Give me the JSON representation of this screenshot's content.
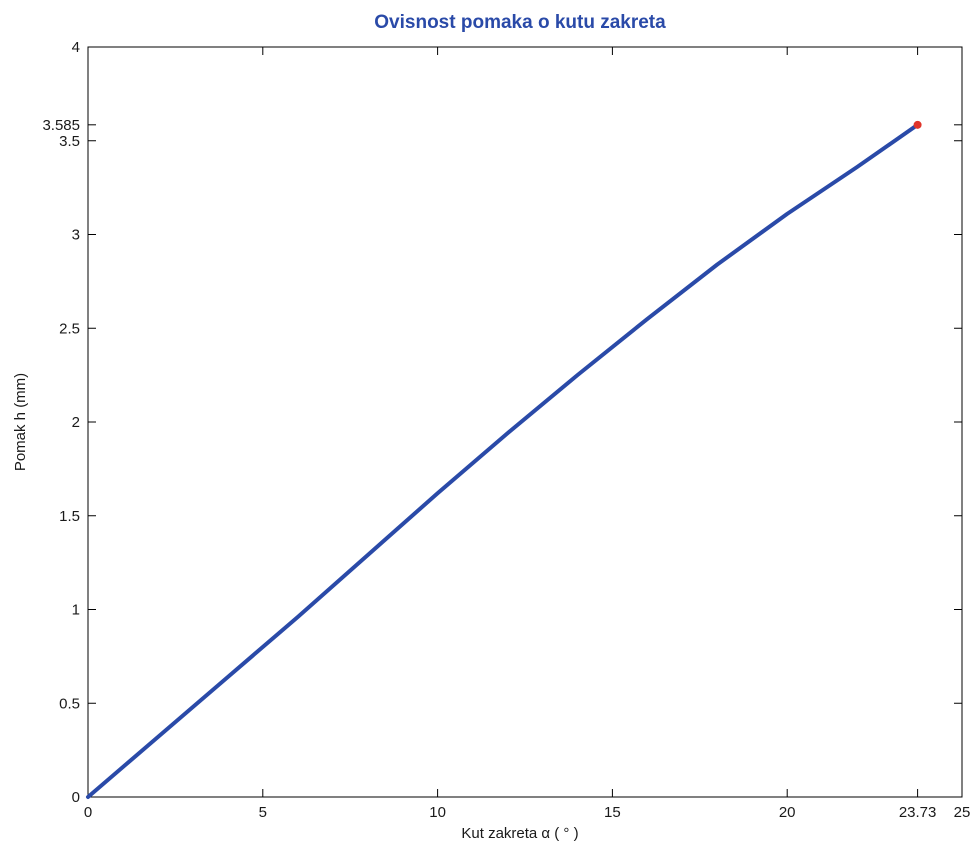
{
  "chart_data": {
    "type": "line",
    "title": "Ovisnost pomaka o kutu zakreta",
    "xlabel": "Kut zakreta α  ( ° )",
    "ylabel": "Pomak h (mm)",
    "xlim": [
      0,
      25
    ],
    "ylim": [
      0,
      4
    ],
    "x_ticks": [
      "0",
      "5",
      "10",
      "15",
      "20",
      "23.73",
      "25"
    ],
    "x_tick_values": [
      0,
      5,
      10,
      15,
      20,
      23.73,
      25
    ],
    "y_ticks": [
      "0",
      "0.5",
      "1",
      "1.5",
      "2",
      "2.5",
      "3",
      "3.5",
      "3.585",
      "4"
    ],
    "y_tick_values": [
      0,
      0.5,
      1,
      1.5,
      2,
      2.5,
      3,
      3.5,
      3.585,
      4
    ],
    "grid": false,
    "series": [
      {
        "color": "#2a4aa8",
        "x": [
          0,
          2,
          4,
          6,
          8,
          10,
          12,
          14,
          16,
          18,
          20,
          22,
          23.73
        ],
        "y": [
          0,
          0.32,
          0.64,
          0.96,
          1.29,
          1.62,
          1.94,
          2.25,
          2.55,
          2.84,
          3.11,
          3.36,
          3.585
        ]
      }
    ],
    "marker": {
      "x": 23.73,
      "y": 3.585,
      "color": "#e0342a"
    }
  }
}
